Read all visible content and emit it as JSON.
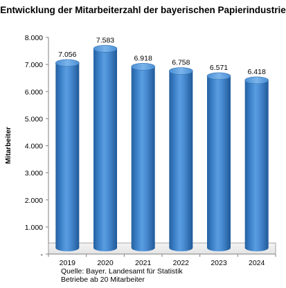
{
  "chart_data": {
    "type": "bar",
    "title": "Entwicklung der Mitarbeiterzahl der bayerischen Papierindustrie",
    "ylabel": "Mitarbeiter",
    "xlabel": "",
    "categories": [
      "2019",
      "2020",
      "2021",
      "2022",
      "2023",
      "2024"
    ],
    "values": [
      7056,
      7583,
      6918,
      6758,
      6571,
      6418
    ],
    "value_labels": [
      "7.056",
      "7.583",
      "6.918",
      "6.758",
      "6.571",
      "6.418"
    ],
    "ylim": [
      0,
      8000
    ],
    "yticks": [
      0,
      1000,
      2000,
      3000,
      4000,
      5000,
      6000,
      7000,
      8000
    ],
    "ytick_labels": [
      "-",
      "1.000",
      "2.000",
      "3.000",
      "4.000",
      "5.000",
      "6.000",
      "7.000",
      "8.000"
    ],
    "grid": false,
    "legend": "none",
    "bar_style": "3d-cylinder",
    "bar_color": "#3d7fc4"
  },
  "footnote": {
    "line1": "Quelle: Bayer. Landesamt für Statistik",
    "line2": "Betriebe ab 20 Mitarbeiter"
  }
}
